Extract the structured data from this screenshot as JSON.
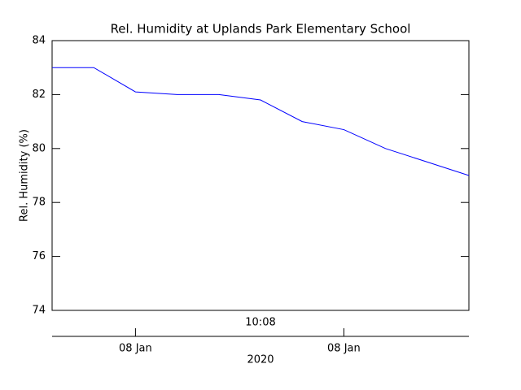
{
  "chart_data": {
    "type": "line",
    "title": "Rel. Humidity at Uplands Park Elementary School",
    "ylabel": "Rel. Humidity (%)",
    "time_label": "10:08",
    "xlabel": "2020",
    "x": [
      0,
      1,
      2,
      3,
      4,
      5,
      6,
      7,
      8,
      9,
      10
    ],
    "series": [
      {
        "color": "#0000ff",
        "values": [
          83.0,
          83.0,
          82.1,
          82.0,
          82.0,
          81.8,
          81.0,
          80.7,
          80.0,
          79.5,
          79.0
        ]
      }
    ],
    "xlim": [
      0,
      10
    ],
    "xticks": [
      {
        "value": 2,
        "label": "08 Jan"
      },
      {
        "value": 7,
        "label": "08 Jan"
      }
    ],
    "ylim": [
      74,
      84
    ],
    "yticks": [
      74,
      76,
      78,
      80,
      82,
      84
    ],
    "grid": false
  }
}
